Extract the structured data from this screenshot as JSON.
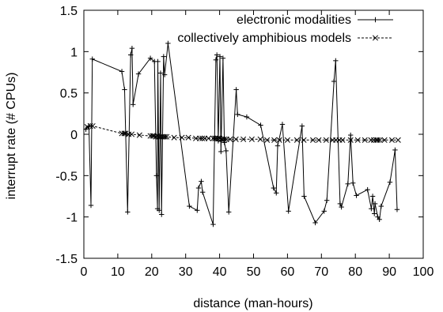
{
  "chart_data": {
    "type": "line",
    "xlabel": "distance (man-hours)",
    "ylabel": "interrupt rate (# CPUs)",
    "xlim": [
      0,
      100
    ],
    "ylim": [
      -1.5,
      1.5
    ],
    "xticks": [
      0,
      10,
      20,
      30,
      40,
      50,
      60,
      70,
      80,
      90,
      100
    ],
    "xtick_labels": [
      "0",
      "10",
      "20",
      "30",
      "40",
      "50",
      "60",
      "70",
      "80",
      "90",
      "100"
    ],
    "yticks": [
      -1.5,
      -1,
      -0.5,
      0,
      0.5,
      1,
      1.5
    ],
    "ytick_labels": [
      "-1.5",
      "-1",
      "-0.5",
      "0",
      "0.5",
      "1",
      "1.5"
    ],
    "grid": false,
    "legend_position": "top-right",
    "series": [
      {
        "name": "electronic modalities",
        "style": "solid",
        "marker": "+",
        "color": "#000000",
        "x": [
          0.6,
          1.5,
          2.1,
          2.5,
          11.2,
          12.0,
          12.9,
          13.8,
          14.2,
          14.5,
          16.1,
          19.6,
          20.8,
          21.4,
          21.7,
          21.8,
          22.2,
          22.6,
          22.9,
          23.5,
          23.8,
          24.8,
          31.1,
          33.4,
          33.8,
          34.6,
          35.0,
          38.1,
          38.9,
          39.2,
          39.6,
          40.1,
          40.4,
          41.0,
          41.4,
          41.9,
          42.7,
          44.9,
          45.3,
          48.0,
          52.1,
          55.9,
          56.7,
          57.1,
          58.5,
          60.3,
          64.3,
          64.9,
          68.2,
          70.8,
          71.6,
          73.7,
          74.2,
          75.5,
          75.9,
          77.8,
          78.6,
          79.3,
          80.3,
          83.6,
          84.7,
          85.1,
          85.6,
          85.8,
          86.6,
          87.1,
          87.6,
          90.2,
          91.7,
          92.3
        ],
        "y": [
          0.06,
          0.1,
          -0.86,
          0.91,
          0.76,
          0.54,
          -0.94,
          0.96,
          1.04,
          0.36,
          0.73,
          0.92,
          0.88,
          -0.5,
          -0.9,
          0.88,
          -0.92,
          0.74,
          -0.97,
          0.94,
          0.72,
          1.1,
          -0.87,
          -0.92,
          -0.65,
          -0.57,
          -0.7,
          -1.09,
          0.9,
          0.96,
          -0.08,
          0.94,
          -0.21,
          0.92,
          -0.1,
          -0.2,
          -0.94,
          0.54,
          0.24,
          0.21,
          0.11,
          -0.65,
          -0.71,
          -0.14,
          0.12,
          -0.93,
          0.1,
          -0.75,
          -1.07,
          -0.93,
          -0.8,
          0.64,
          0.89,
          -0.84,
          -0.88,
          -0.6,
          -0.01,
          -0.59,
          -0.74,
          -0.67,
          -0.9,
          -0.75,
          -0.96,
          -0.84,
          -1.0,
          -1.03,
          -0.87,
          -0.58,
          -0.19,
          -0.91
        ]
      },
      {
        "name": "collectively amphibious models",
        "style": "dashed",
        "marker": "x",
        "color": "#000000",
        "x": [
          1.0,
          1.9,
          2.6,
          11.2,
          11.9,
          12.3,
          13.2,
          14.1,
          16.4,
          19.6,
          20.2,
          20.6,
          21.2,
          21.7,
          22.1,
          22.6,
          23.0,
          23.5,
          23.9,
          24.4,
          26.6,
          28.9,
          30.8,
          33.0,
          34.2,
          34.9,
          35.6,
          36.7,
          38.1,
          38.6,
          39.0,
          39.5,
          40.0,
          40.5,
          40.9,
          41.4,
          42.0,
          43.1,
          44.8,
          47.0,
          49.5,
          52.0,
          54.0,
          56.1,
          57.6,
          60.0,
          62.8,
          64.8,
          67.5,
          69.2,
          71.4,
          73.3,
          74.3,
          75.3,
          76.2,
          78.6,
          80.7,
          82.8,
          84.6,
          85.4,
          86.2,
          86.6,
          87.2,
          88.6,
          90.8,
          92.6
        ],
        "y": [
          0.09,
          0.1,
          0.1,
          0.01,
          0.01,
          0.01,
          0.0,
          0.0,
          -0.01,
          -0.02,
          -0.02,
          -0.02,
          -0.03,
          -0.02,
          -0.03,
          -0.03,
          -0.03,
          -0.03,
          -0.03,
          -0.03,
          -0.04,
          -0.04,
          -0.04,
          -0.05,
          -0.05,
          -0.05,
          -0.05,
          -0.05,
          -0.05,
          -0.05,
          -0.05,
          -0.05,
          -0.05,
          -0.06,
          -0.06,
          -0.06,
          -0.06,
          -0.06,
          -0.06,
          -0.06,
          -0.06,
          -0.06,
          -0.07,
          -0.07,
          -0.07,
          -0.07,
          -0.07,
          -0.07,
          -0.07,
          -0.07,
          -0.07,
          -0.07,
          -0.07,
          -0.07,
          -0.07,
          -0.07,
          -0.07,
          -0.07,
          -0.07,
          -0.07,
          -0.07,
          -0.07,
          -0.07,
          -0.07,
          -0.07,
          -0.07
        ]
      }
    ]
  }
}
